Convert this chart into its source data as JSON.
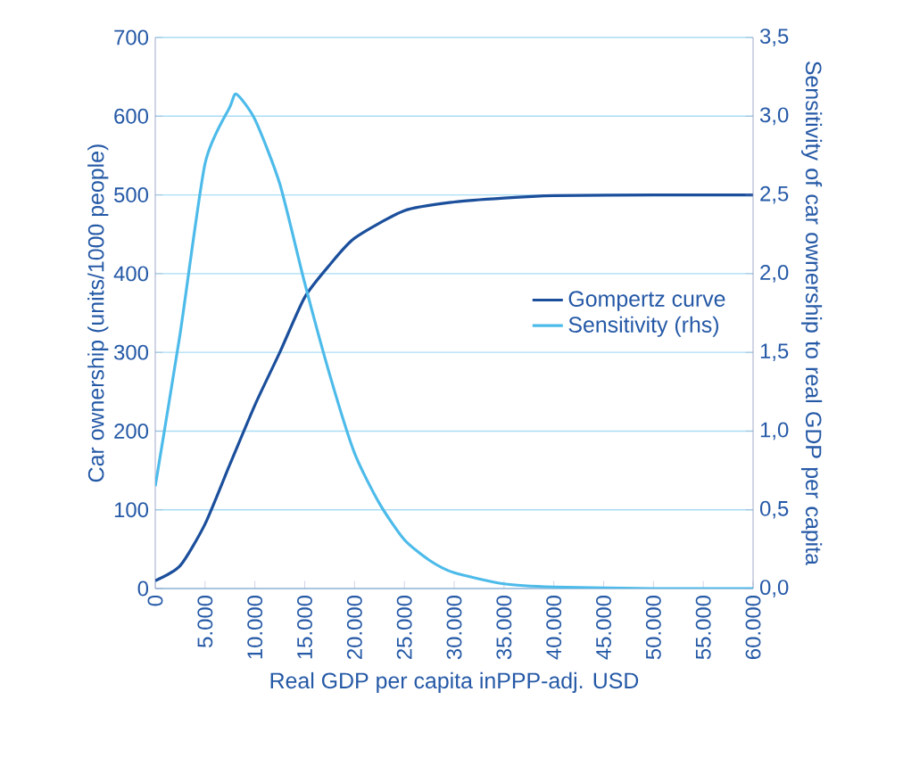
{
  "chart_data": {
    "type": "line",
    "xlabel": "Real GDP per capita inPPP-adj. USD",
    "ylabel": "Car ownership (units/1000 people)",
    "y2label": "Sensitivity of car ownership to real GDP per capita",
    "series": [
      {
        "name": "Gompertz curve",
        "color": "#1b4f9c",
        "x": [
          0,
          2500,
          5000,
          7500,
          10000,
          12500,
          15000,
          17500,
          20000,
          25000,
          30000,
          35000,
          40000,
          50000,
          60000
        ],
        "values": [
          10,
          29,
          82,
          158,
          233,
          300,
          370,
          411,
          445,
          480,
          491,
          496,
          499,
          500,
          500
        ]
      },
      {
        "name": "Sensitivity (rhs)",
        "color": "#4dbbea",
        "axis": "y2",
        "x": [
          0,
          2500,
          5000,
          7500,
          8150,
          10000,
          12500,
          15000,
          17500,
          20000,
          22500,
          25000,
          27500,
          30000,
          35000,
          40000,
          50000,
          60000
        ],
        "values": [
          0.65,
          1.62,
          2.7,
          3.06,
          3.14,
          2.98,
          2.57,
          1.94,
          1.36,
          0.86,
          0.54,
          0.31,
          0.18,
          0.1,
          0.03,
          0.01,
          0,
          0
        ]
      }
    ],
    "xlim": [
      0,
      60000
    ],
    "xticks": [
      0,
      {
        "value": 5000,
        "label": "5.000"
      },
      {
        "value": 10000,
        "label": "10.000"
      },
      {
        "value": 15000,
        "label": "15.000"
      },
      {
        "value": 20000,
        "label": "20.000"
      },
      {
        "value": 25000,
        "label": "25.000"
      },
      {
        "value": 30000,
        "label": "30.000"
      },
      {
        "value": 35000,
        "label": "35.000"
      },
      {
        "value": 40000,
        "label": "40.000"
      },
      {
        "value": 45000,
        "label": "45.000"
      },
      {
        "value": 50000,
        "label": "50.000"
      },
      {
        "value": 55000,
        "label": "55.000"
      },
      {
        "value": 60000,
        "label": "60.000"
      }
    ],
    "ylim": [
      0,
      700
    ],
    "yticks": [
      0,
      100,
      200,
      300,
      400,
      500,
      600,
      700
    ],
    "y2lim": [
      0,
      3.5
    ],
    "y2ticks": [
      {
        "value": 0,
        "label": "0,0"
      },
      {
        "value": 0.5,
        "label": "0,5"
      },
      {
        "value": 1,
        "label": "1,0"
      },
      {
        "value": 1.5,
        "label": "1,5"
      },
      {
        "value": 2,
        "label": "2,0"
      },
      {
        "value": 2.5,
        "label": "2,5"
      },
      {
        "value": 3,
        "label": "3,0"
      },
      {
        "value": 3.5,
        "label": "3,5"
      }
    ],
    "grid": "y",
    "legend": "right",
    "marker": "none",
    "line_style": "solid"
  }
}
